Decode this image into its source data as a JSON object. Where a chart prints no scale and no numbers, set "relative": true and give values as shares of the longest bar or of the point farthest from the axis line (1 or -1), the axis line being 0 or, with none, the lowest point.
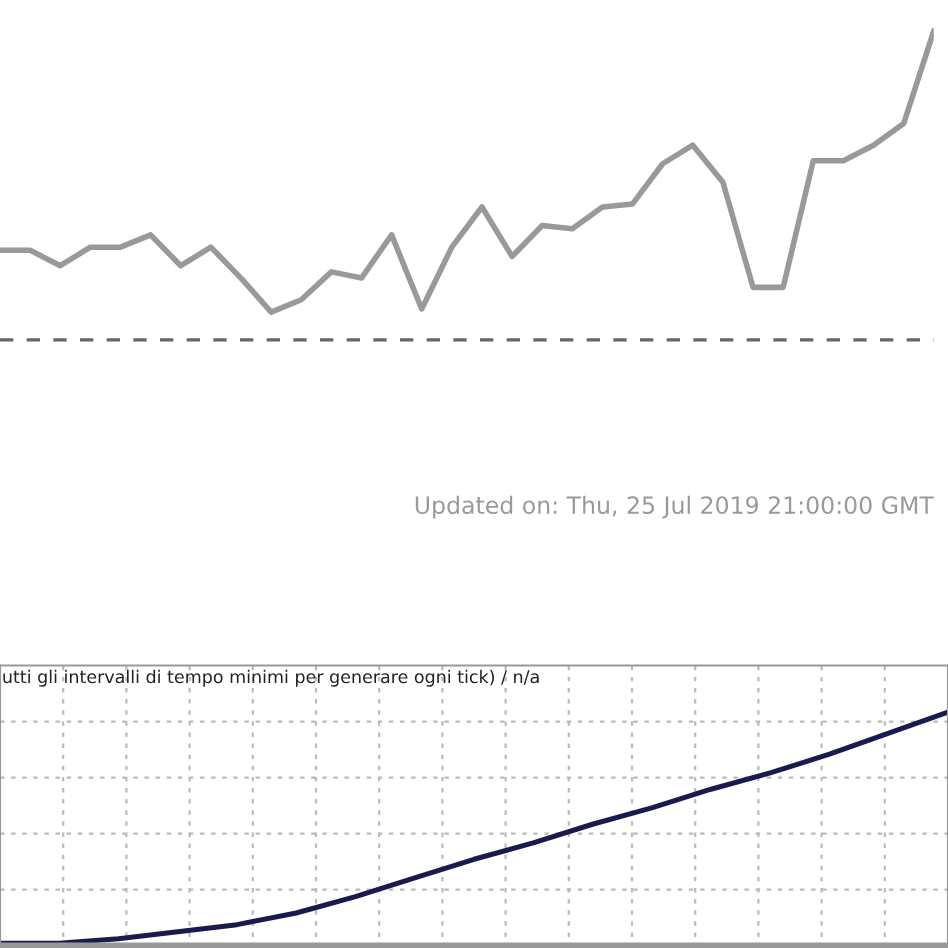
{
  "chart_data": [
    {
      "type": "line",
      "relative": true,
      "categories": [
        null,
        null,
        null,
        null,
        null,
        null,
        null,
        null,
        null,
        null,
        null,
        null,
        null,
        null,
        null,
        null,
        null,
        null,
        null,
        null,
        null,
        null,
        null,
        null,
        null,
        null,
        null,
        null,
        null,
        null,
        null,
        null
      ],
      "series": [
        {
          "color": "#999999",
          "values": [
            0.29,
            0.29,
            0.24,
            0.3,
            0.3,
            0.34,
            0.24,
            0.3,
            0.2,
            0.09,
            0.13,
            0.22,
            0.2,
            0.34,
            0.1,
            0.3,
            0.43,
            0.27,
            0.37,
            0.36,
            0.43,
            0.44,
            0.57,
            0.63,
            0.51,
            0.17,
            0.17,
            0.58,
            0.58,
            0.63,
            0.7,
            1
          ]
        }
      ],
      "ref_lines": [
        {
          "axis": "y",
          "value": 0,
          "color": "#666666",
          "line_style": "dashed"
        }
      ],
      "annotations": [
        "Updated on: Thu, 25 Jul 2019 21:00:00 GMT"
      ],
      "grid": false
    },
    {
      "type": "line",
      "relative": true,
      "title": "utti gli intervalli di tempo minimi per generare ogni tick) / n/a",
      "categories": [
        null,
        null,
        null,
        null,
        null,
        null,
        null,
        null,
        null,
        null,
        null,
        null,
        null,
        null,
        null,
        null,
        null
      ],
      "series": [
        {
          "color": "#1a1a4e",
          "values": [
            0.01,
            0.01,
            0.03,
            0.06,
            0.09,
            0.14,
            0.21,
            0.29,
            0.37,
            0.44,
            0.52,
            0.59,
            0.67,
            0.74,
            0.82,
            0.91,
            1
          ]
        }
      ],
      "grid": true
    }
  ]
}
